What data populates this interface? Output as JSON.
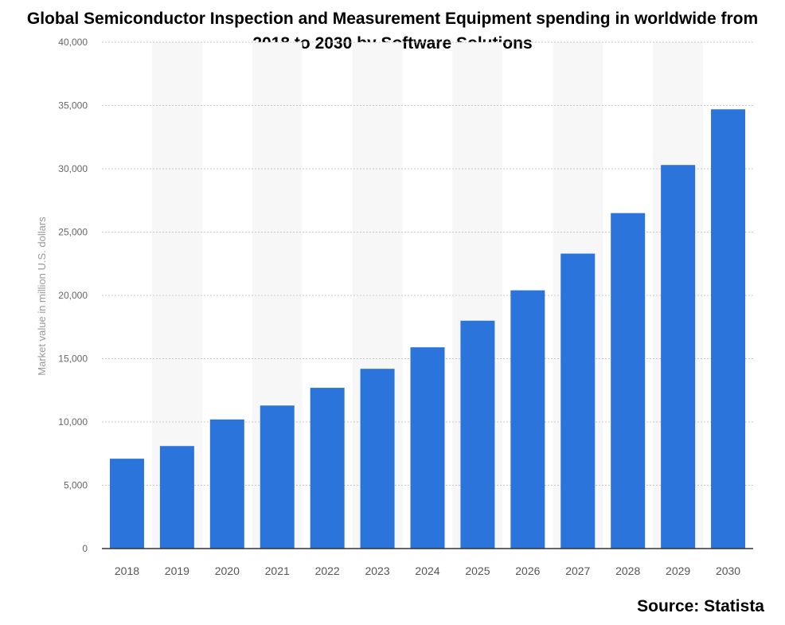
{
  "chart_data": {
    "type": "bar",
    "title_lines": [
      "Global Semiconductor Inspection and Measurement Equipment spending in worldwide from",
      "2018 to 2030 by Software Solutions"
    ],
    "xlabel": "",
    "ylabel": "Market value in million U.S. dollars",
    "categories": [
      "2018",
      "2019",
      "2020",
      "2021",
      "2022",
      "2023",
      "2024",
      "2025",
      "2026",
      "2027",
      "2028",
      "2029",
      "2030"
    ],
    "values": [
      7100,
      8100,
      10200,
      11300,
      12700,
      14200,
      15900,
      18000,
      20400,
      23300,
      26500,
      30300,
      34700
    ],
    "ylim": [
      0,
      40000
    ],
    "yticks": [
      0,
      5000,
      10000,
      15000,
      20000,
      25000,
      30000,
      35000,
      40000
    ],
    "ytick_labels": [
      "0",
      "5,000",
      "10,000",
      "15,000",
      "20,000",
      "25,000",
      "30,000",
      "35,000",
      "40,000"
    ],
    "bar_color": "#2a74db",
    "grid": true,
    "legend": "none"
  },
  "source_text": "Source: Statista"
}
